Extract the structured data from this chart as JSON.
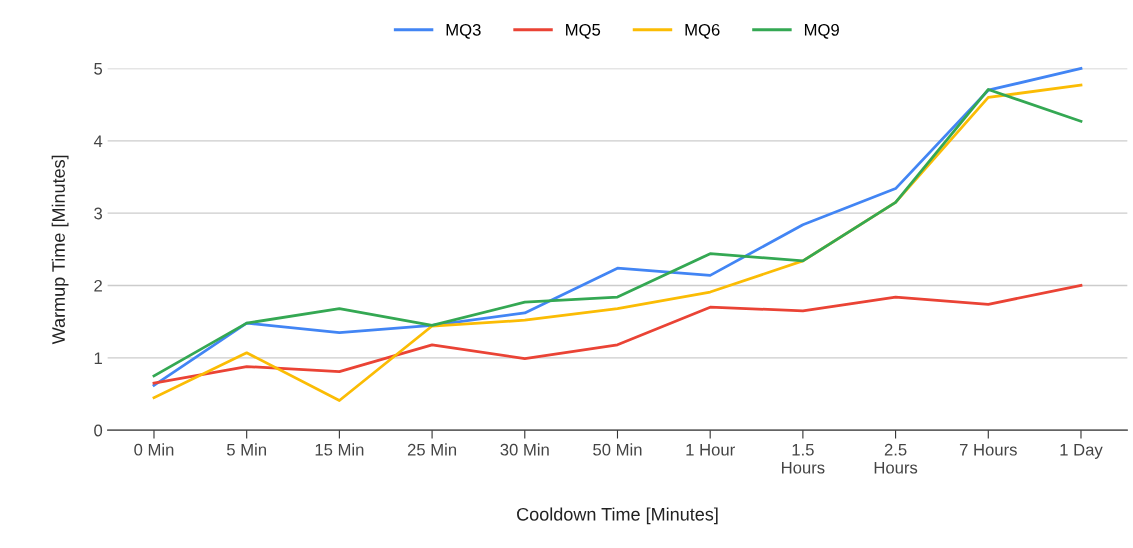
{
  "chart_data": {
    "type": "line",
    "xlabel": "Cooldown Time [Minutes]",
    "ylabel": "Warmup Time [Minutes]",
    "categories": [
      "0 Min",
      "5 Min",
      "15 Min",
      "25 Min",
      "30 Min",
      "50 Min",
      "1 Hour",
      "1.5\nHours",
      "2.5\nHours",
      "7 Hours",
      "1 Day"
    ],
    "series": [
      {
        "name": "MQ3",
        "color": "#4285f4",
        "values": [
          0.62,
          1.48,
          1.35,
          1.45,
          1.62,
          2.24,
          2.14,
          2.84,
          3.34,
          4.7,
          5.0
        ]
      },
      {
        "name": "MQ5",
        "color": "#ea4335",
        "values": [
          0.65,
          0.88,
          0.81,
          1.18,
          0.99,
          1.18,
          1.7,
          1.65,
          1.84,
          1.74,
          2.0
        ]
      },
      {
        "name": "MQ6",
        "color": "#fbbc04",
        "values": [
          0.45,
          1.07,
          0.41,
          1.44,
          1.52,
          1.68,
          1.91,
          2.34,
          3.15,
          4.6,
          4.77
        ]
      },
      {
        "name": "MQ9",
        "color": "#34a853",
        "values": [
          0.75,
          1.48,
          1.68,
          1.45,
          1.77,
          1.84,
          2.44,
          2.34,
          3.15,
          4.71,
          4.27
        ]
      }
    ],
    "ylim": [
      0,
      5
    ],
    "yticks": [
      0,
      1,
      2,
      3,
      4,
      5
    ],
    "grid": "y",
    "legend": "top",
    "marker": "none",
    "line_style": "solid"
  }
}
